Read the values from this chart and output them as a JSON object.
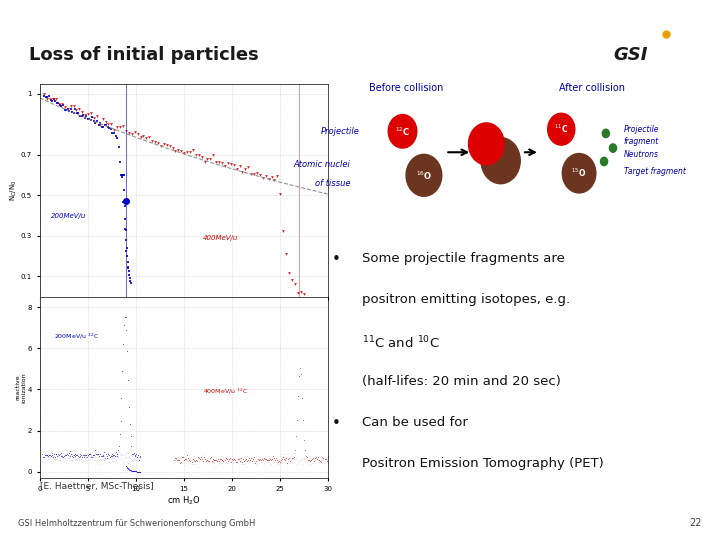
{
  "title": "Loss of initial particles",
  "title_color": "#1a1a1a",
  "title_fontsize": 13,
  "bg_color": "#ffffff",
  "header_bar_color": "#eeeeee",
  "accent_bar_color": "#e8a000",
  "footer_text": "GSI Helmholtzzentrum für Schwerionenforschung GmbH",
  "footer_page": "22",
  "reference_text": "[E. Haettner, MSc-Thesis]",
  "bullet1_line1": "Some projectile fragments are",
  "bullet1_line2": "positron emitting isotopes, e.g.",
  "bullet1_line3": "$^{11}$C and $^{10}$C",
  "bullet1_line4": "(half-lifes: 20 min and 20 sec)",
  "bullet2_line1": "Can be used for",
  "bullet2_line2": "Positron Emission Tomography (PET)",
  "bullet_color": "#111111",
  "bullet_fontsize": 9.5,
  "collision_title1": "Before collision",
  "collision_title2": "After collision",
  "label_projectile": "Projectile",
  "label_c12": "$^{12}$C",
  "label_o16": "$^{16}$O",
  "label_atomic": "Atomic nuclei",
  "label_tissue": "of tissue",
  "label_c11": "$^{11}$C",
  "label_o15": "$^{15}$O",
  "label_proj_frag": "Projectile",
  "label_proj_frag2": "fragment",
  "label_neutrons": "Neutrons",
  "label_target_frag": "Target fragment",
  "left_bar_color": "#e8a000",
  "blue_color": "#0000cc",
  "red_color": "#cc0000",
  "proj_red": "#dd0000",
  "tissue_brown": "#6b3520",
  "neutron_green": "#2a7a2a"
}
